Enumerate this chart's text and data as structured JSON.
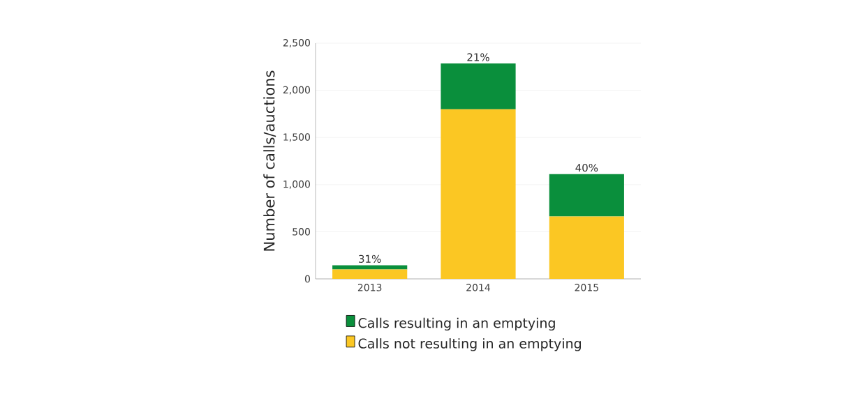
{
  "chart_data": {
    "type": "bar",
    "stacked": true,
    "categories": [
      "2013",
      "2014",
      "2015"
    ],
    "series": [
      {
        "name": "Calls not resulting in an emptying",
        "color": "#fbc723",
        "values": [
          100,
          1800,
          662
        ]
      },
      {
        "name": "Calls resulting in an emptying",
        "color": "#0a8f3c",
        "values": [
          45,
          485,
          450
        ]
      }
    ],
    "ylabel": "Number of calls/auctions",
    "ylim": [
      0,
      2500
    ],
    "yticks": [
      {
        "value": 0,
        "label": "0"
      },
      {
        "value": 500,
        "label": "500"
      },
      {
        "value": 1000,
        "label": "1,000"
      },
      {
        "value": 1500,
        "label": "1,500"
      },
      {
        "value": 2000,
        "label": "2,000"
      },
      {
        "value": 2500,
        "label": "2,500"
      }
    ],
    "grid": "y",
    "legend": "bottom",
    "annotations": [
      {
        "text": "31%",
        "x": "2013",
        "y": 145
      },
      {
        "text": "21%",
        "x": "2014",
        "y": 2285
      },
      {
        "text": "40%",
        "x": "2015",
        "y": 1112
      }
    ]
  }
}
